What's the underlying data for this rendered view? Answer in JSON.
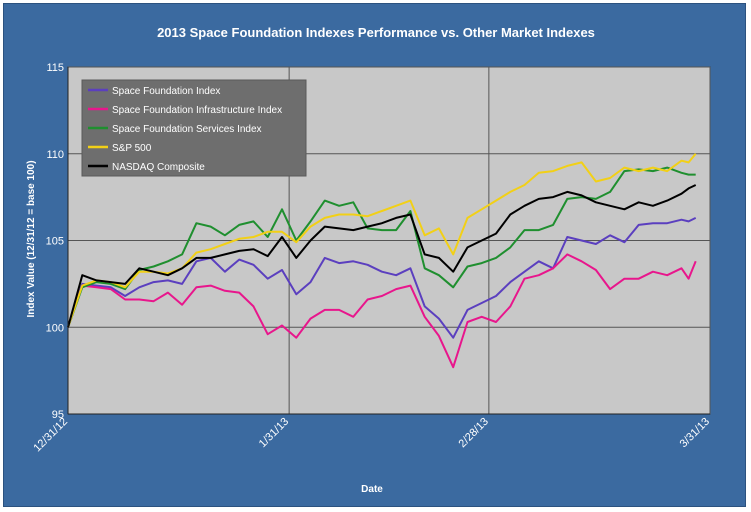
{
  "chart_data": {
    "type": "line",
    "title": "2013 Space Foundation Indexes Performance vs. Other Market Indexes",
    "xlabel": "Date",
    "ylabel": "Index Value (12/31/12 = base 100)",
    "ylim": [
      95,
      115
    ],
    "yticks": [
      95,
      100,
      105,
      110,
      115
    ],
    "x_tick_labels": [
      "12/31/12",
      "1/31/13",
      "2/28/13",
      "3/31/13"
    ],
    "x_tick_positions": [
      0,
      31,
      59,
      90
    ],
    "xlim": [
      0,
      90
    ],
    "grid": true,
    "legend_position": "top-left",
    "series": [
      {
        "name": "Space Foundation Index",
        "color": "#5b3fbf",
        "x": [
          0,
          2,
          4,
          6,
          8,
          10,
          12,
          14,
          16,
          18,
          20,
          22,
          24,
          26,
          28,
          30,
          32,
          34,
          36,
          38,
          40,
          42,
          44,
          46,
          48,
          50,
          52,
          54,
          56,
          58,
          60,
          62,
          64,
          66,
          68,
          70,
          72,
          74,
          76,
          78,
          80,
          82,
          84,
          86,
          87,
          88
        ],
        "y": [
          100,
          102.5,
          102.4,
          102.3,
          101.8,
          102.3,
          102.6,
          102.7,
          102.5,
          103.8,
          104,
          103.2,
          103.9,
          103.6,
          102.8,
          103.3,
          101.9,
          102.6,
          104,
          103.7,
          103.8,
          103.6,
          103.2,
          103.0,
          103.4,
          101.2,
          100.5,
          99.4,
          101.0,
          101.4,
          101.8,
          102.6,
          103.2,
          103.8,
          103.4,
          105.2,
          105.0,
          104.8,
          105.3,
          104.9,
          105.9,
          106.0,
          106.0,
          106.2,
          106.1,
          106.3
        ]
      },
      {
        "name": "Space Foundation Infrastructure Index",
        "color": "#e8168c",
        "x": [
          0,
          2,
          4,
          6,
          8,
          10,
          12,
          14,
          16,
          18,
          20,
          22,
          24,
          26,
          28,
          30,
          32,
          34,
          36,
          38,
          40,
          42,
          44,
          46,
          48,
          50,
          52,
          54,
          56,
          58,
          60,
          62,
          64,
          66,
          68,
          70,
          72,
          74,
          76,
          78,
          80,
          82,
          84,
          86,
          87,
          88
        ],
        "y": [
          100,
          102.4,
          102.3,
          102.2,
          101.6,
          101.6,
          101.5,
          102.0,
          101.3,
          102.3,
          102.4,
          102.1,
          102.0,
          101.2,
          99.6,
          100.1,
          99.4,
          100.5,
          101.0,
          101.0,
          100.6,
          101.6,
          101.8,
          102.2,
          102.4,
          100.6,
          99.5,
          97.7,
          100.3,
          100.6,
          100.3,
          101.2,
          102.8,
          103.0,
          103.4,
          104.2,
          103.8,
          103.3,
          102.2,
          102.8,
          102.8,
          103.2,
          103.0,
          103.4,
          102.8,
          103.8
        ]
      },
      {
        "name": "Space Foundation Services Index",
        "color": "#1f8f2f",
        "x": [
          0,
          2,
          4,
          6,
          8,
          10,
          12,
          14,
          16,
          18,
          20,
          22,
          24,
          26,
          28,
          30,
          32,
          34,
          36,
          38,
          40,
          42,
          44,
          46,
          48,
          50,
          52,
          54,
          56,
          58,
          60,
          62,
          64,
          66,
          68,
          70,
          72,
          74,
          76,
          78,
          80,
          82,
          84,
          86,
          87,
          88
        ],
        "y": [
          100,
          102.3,
          102.6,
          102.5,
          102.2,
          103.3,
          103.5,
          103.8,
          104.2,
          106.0,
          105.8,
          105.3,
          105.9,
          106.1,
          105.2,
          106.8,
          105.0,
          106.1,
          107.3,
          107.0,
          107.2,
          105.7,
          105.6,
          105.6,
          106.7,
          103.4,
          103.0,
          102.3,
          103.5,
          103.7,
          104.0,
          104.6,
          105.6,
          105.6,
          105.9,
          107.4,
          107.5,
          107.4,
          107.8,
          109.0,
          109.1,
          109.0,
          109.2,
          108.9,
          108.8,
          108.8
        ]
      },
      {
        "name": "S&P 500",
        "color": "#f2d016",
        "x": [
          0,
          2,
          4,
          6,
          8,
          10,
          12,
          14,
          16,
          18,
          20,
          22,
          24,
          26,
          28,
          30,
          32,
          34,
          36,
          38,
          40,
          42,
          44,
          46,
          48,
          50,
          52,
          54,
          56,
          58,
          60,
          62,
          64,
          66,
          68,
          70,
          72,
          74,
          76,
          78,
          80,
          82,
          84,
          86,
          87,
          88
        ],
        "y": [
          100,
          102.4,
          102.7,
          102.6,
          102.3,
          103.2,
          103.2,
          103.1,
          103.4,
          104.3,
          104.5,
          104.8,
          105.1,
          105.2,
          105.5,
          105.5,
          104.9,
          105.8,
          106.3,
          106.5,
          106.5,
          106.4,
          106.7,
          107.0,
          107.3,
          105.3,
          105.7,
          104.2,
          106.3,
          106.8,
          107.3,
          107.8,
          108.2,
          108.9,
          109.0,
          109.3,
          109.5,
          108.4,
          108.6,
          109.2,
          109.0,
          109.2,
          109.0,
          109.6,
          109.5,
          110.0
        ]
      },
      {
        "name": "NASDAQ Composite",
        "color": "#000000",
        "x": [
          0,
          2,
          4,
          6,
          8,
          10,
          12,
          14,
          16,
          18,
          20,
          22,
          24,
          26,
          28,
          30,
          32,
          34,
          36,
          38,
          40,
          42,
          44,
          46,
          48,
          50,
          52,
          54,
          56,
          58,
          60,
          62,
          64,
          66,
          68,
          70,
          72,
          74,
          76,
          78,
          80,
          82,
          84,
          86,
          87,
          88
        ],
        "y": [
          100,
          103.0,
          102.7,
          102.6,
          102.5,
          103.4,
          103.2,
          103.0,
          103.4,
          104.0,
          104.0,
          104.2,
          104.4,
          104.5,
          104.1,
          105.2,
          104.0,
          105.0,
          105.8,
          105.7,
          105.6,
          105.8,
          106.0,
          106.3,
          106.5,
          104.2,
          104.0,
          103.2,
          104.6,
          105.0,
          105.4,
          106.5,
          107.0,
          107.4,
          107.5,
          107.8,
          107.6,
          107.2,
          107.0,
          106.8,
          107.2,
          107.0,
          107.3,
          107.7,
          108.0,
          108.2
        ]
      }
    ]
  }
}
